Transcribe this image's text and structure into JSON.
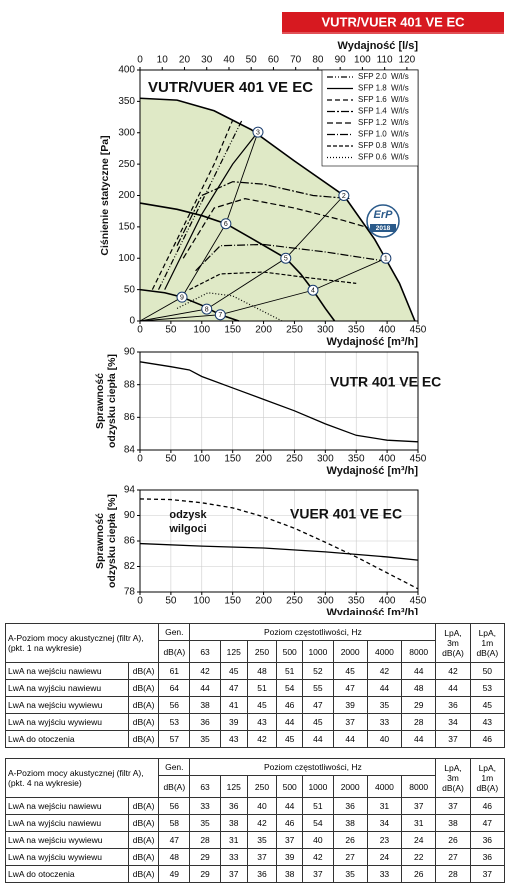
{
  "header": {
    "title": "VUTR/VUER 401 VE EC"
  },
  "chart_data": [
    {
      "type": "line",
      "title": "VUTR/VUER 401 VE EC",
      "xlabel": "Wydajność [m³/h]",
      "x2label": "Wydajność [l/s]",
      "ylabel": "Ciśnienie statyczne [Pa]",
      "xlim": [
        0,
        450
      ],
      "xticks": [
        0,
        50,
        100,
        150,
        200,
        250,
        300,
        350,
        400,
        450
      ],
      "x2lim": [
        0,
        125
      ],
      "x2ticks": [
        0,
        10,
        20,
        30,
        40,
        50,
        60,
        70,
        80,
        90,
        100,
        110,
        120
      ],
      "ylim": [
        0,
        400
      ],
      "yticks": [
        0,
        50,
        100,
        150,
        200,
        250,
        300,
        350,
        400
      ],
      "grid": false,
      "legend_unit": "W/l/s",
      "series": [
        {
          "name": "SFP 2.0",
          "color": "#000000",
          "dash": "6 2 1 2 1 2",
          "width": 1.2,
          "x": [
            30,
            80,
            130,
            165
          ],
          "values": [
            50,
            150,
            250,
            320
          ]
        },
        {
          "name": "SFP 1.8",
          "color": "#000000",
          "dash": "",
          "width": 1.2,
          "x": [
            40,
            100,
            150,
            190
          ],
          "values": [
            50,
            170,
            250,
            300
          ]
        },
        {
          "name": "SFP 1.6",
          "color": "#000000",
          "dash": "5 3",
          "width": 1.2,
          "x": [
            20,
            70,
            120,
            150
          ],
          "values": [
            50,
            150,
            250,
            320
          ]
        },
        {
          "name": "SFP 1.4",
          "color": "#000000",
          "dash": "8 2 2 2",
          "width": 1.2,
          "x": [
            60,
            100,
            150,
            200,
            280,
            340
          ],
          "values": [
            120,
            200,
            222,
            218,
            200,
            195
          ]
        },
        {
          "name": "SFP 1.2",
          "color": "#000000",
          "dash": "6 3",
          "width": 1.2,
          "x": [
            70,
            120,
            170,
            250,
            330,
            400
          ],
          "values": [
            100,
            180,
            195,
            180,
            160,
            140
          ]
        },
        {
          "name": "SFP 1.0",
          "color": "#000000",
          "dash": "8 2 1 2",
          "width": 1.2,
          "x": [
            90,
            130,
            200,
            300,
            400
          ],
          "values": [
            80,
            120,
            122,
            110,
            95
          ]
        },
        {
          "name": "SFP 0.8",
          "color": "#000000",
          "dash": "4 2",
          "width": 1.2,
          "x": [
            80,
            130,
            200,
            280,
            350
          ],
          "values": [
            50,
            75,
            78,
            68,
            60
          ]
        },
        {
          "name": "SFP 0.6",
          "color": "#000000",
          "dash": "1 2",
          "width": 1.2,
          "x": [
            60,
            110,
            150,
            210,
            230
          ],
          "values": [
            20,
            45,
            40,
            10,
            0
          ]
        },
        {
          "color": "#000000",
          "dash": "",
          "width": 1.6,
          "fill": "#dfe9c6",
          "x": [
            0,
            60,
            120,
            180,
            250,
            330,
            380,
            420,
            445
          ],
          "values": [
            355,
            352,
            335,
            305,
            255,
            200,
            130,
            60,
            0
          ]
        },
        {
          "color": "#000000",
          "dash": "",
          "width": 1.6,
          "x": [
            0,
            60,
            100,
            139,
            180,
            236,
            260,
            280,
            300,
            315
          ],
          "values": [
            188,
            178,
            168,
            155,
            132,
            100,
            75,
            49,
            20,
            0
          ]
        },
        {
          "color": "#000000",
          "dash": "",
          "width": 1.6,
          "x": [
            0,
            40,
            68,
            100,
            130,
            160
          ],
          "values": [
            50,
            45,
            38,
            25,
            10,
            0
          ]
        },
        {
          "color": "#000000",
          "dash": "",
          "width": 0.9,
          "x": [
            0,
            68,
            139,
            191
          ],
          "values": [
            0,
            38,
            155,
            301
          ]
        },
        {
          "color": "#000000",
          "dash": "",
          "width": 0.9,
          "x": [
            0,
            108,
            236,
            330
          ],
          "values": [
            0,
            19,
            100,
            200
          ]
        },
        {
          "color": "#000000",
          "dash": "",
          "width": 0.9,
          "x": [
            0,
            130,
            280,
            398
          ],
          "values": [
            0,
            10,
            49,
            100
          ]
        }
      ],
      "points": [
        {
          "label": "1",
          "x": 398,
          "y": 100
        },
        {
          "label": "2",
          "x": 330,
          "y": 200
        },
        {
          "label": "3",
          "x": 191,
          "y": 301
        },
        {
          "label": "4",
          "x": 280,
          "y": 49
        },
        {
          "label": "5",
          "x": 236,
          "y": 100
        },
        {
          "label": "6",
          "x": 139,
          "y": 155
        },
        {
          "label": "7",
          "x": 130,
          "y": 10
        },
        {
          "label": "8",
          "x": 108,
          "y": 19
        },
        {
          "label": "9",
          "x": 68,
          "y": 38
        }
      ],
      "badge": {
        "label": "ErP",
        "year": "2018"
      }
    },
    {
      "type": "line",
      "title": "VUTR 401 VE EC",
      "xlabel": "Wydajność [m³/h]",
      "ylabel": [
        "Sprawność",
        "odzysku ciepła [%]"
      ],
      "xlim": [
        0,
        450
      ],
      "xticks": [
        0,
        50,
        100,
        150,
        200,
        250,
        300,
        350,
        400,
        450
      ],
      "ylim": [
        84,
        90
      ],
      "yticks": [
        84,
        86,
        88,
        90
      ],
      "grid": true,
      "series": [
        {
          "color": "#000000",
          "dash": "",
          "width": 1.3,
          "x": [
            0,
            50,
            80,
            100,
            150,
            200,
            250,
            300,
            350,
            400,
            450
          ],
          "values": [
            89.4,
            89.1,
            88.9,
            88.5,
            87.8,
            87.1,
            86.4,
            85.6,
            84.9,
            84.6,
            84.5
          ]
        }
      ]
    },
    {
      "type": "line",
      "title": "VUER 401 VE EC",
      "xlabel": "Wydajność [m³/h]",
      "ylabel": [
        "Sprawność",
        "odzysku ciepła [%]"
      ],
      "annotation": [
        "odzysk",
        "wilgoci"
      ],
      "xlim": [
        0,
        450
      ],
      "xticks": [
        0,
        50,
        100,
        150,
        200,
        250,
        300,
        350,
        400,
        450
      ],
      "ylim": [
        78,
        94
      ],
      "yticks": [
        78,
        82,
        86,
        90,
        94
      ],
      "grid": true,
      "series": [
        {
          "color": "#000000",
          "dash": "",
          "width": 1.3,
          "x": [
            0,
            100,
            200,
            300,
            400,
            450
          ],
          "values": [
            85.6,
            85.2,
            84.9,
            84.3,
            83.5,
            83
          ]
        },
        {
          "color": "#000000",
          "dash": "4 3",
          "width": 1.3,
          "x": [
            0,
            50,
            100,
            150,
            200,
            250,
            300,
            350,
            400,
            450
          ],
          "values": [
            92.6,
            92.5,
            92,
            91.2,
            89.8,
            88,
            85.8,
            83.5,
            81,
            78.5
          ]
        }
      ]
    }
  ],
  "tables": [
    {
      "title": "A-Poziom mocy akustycznej (filtr A), (pkt. 1 na wykresie)",
      "gen": "Gen.",
      "gen_unit": "dB(A)",
      "freq_title": "Poziom częstotliwości, Hz",
      "freqs": [
        63,
        125,
        250,
        500,
        1000,
        2000,
        4000,
        8000
      ],
      "lpa3": "LpA, 3m dB(A)",
      "lpa1": "LpA, 1m dB(A)",
      "rows": [
        {
          "label": "LwA na wejściu nawiewu",
          "unit": "dB(A)",
          "values": [
            61,
            42,
            45,
            48,
            51,
            52,
            45,
            42,
            44,
            42,
            50
          ]
        },
        {
          "label": "LwA na wyjściu nawiewu",
          "unit": "dB(A)",
          "values": [
            64,
            44,
            47,
            51,
            54,
            55,
            47,
            44,
            48,
            44,
            53
          ]
        },
        {
          "label": "LwA na wejściu wywiewu",
          "unit": "dB(A)",
          "values": [
            56,
            38,
            41,
            45,
            46,
            47,
            39,
            35,
            29,
            36,
            45
          ]
        },
        {
          "label": "LwA na wyjściu wywiewu",
          "unit": "dB(A)",
          "values": [
            53,
            36,
            39,
            43,
            44,
            45,
            37,
            33,
            28,
            34,
            43
          ]
        },
        {
          "label": "LwA do otoczenia",
          "unit": "dB(A)",
          "values": [
            57,
            35,
            43,
            42,
            45,
            44,
            44,
            40,
            44,
            37,
            46
          ]
        }
      ]
    },
    {
      "title": "A-Poziom mocy akustycznej (filtr A), (pkt. 4 na wykresie)",
      "gen": "Gen.",
      "gen_unit": "dB(A)",
      "freq_title": "Poziom częstotliwości, Hz",
      "freqs": [
        63,
        125,
        250,
        500,
        1000,
        2000,
        4000,
        8000
      ],
      "lpa3": "LpA, 3m dB(A)",
      "lpa1": "LpA, 1m dB(A)",
      "rows": [
        {
          "label": "LwA na wejściu nawiewu",
          "unit": "dB(A)",
          "values": [
            56,
            33,
            36,
            40,
            44,
            51,
            36,
            31,
            37,
            37,
            46
          ]
        },
        {
          "label": "LwA na wyjściu nawiewu",
          "unit": "dB(A)",
          "values": [
            58,
            35,
            38,
            42,
            46,
            54,
            38,
            34,
            31,
            38,
            47
          ]
        },
        {
          "label": "LwA na wejściu wywiewu",
          "unit": "dB(A)",
          "values": [
            47,
            28,
            31,
            35,
            37,
            40,
            26,
            23,
            24,
            26,
            36
          ]
        },
        {
          "label": "LwA na wyjściu wywiewu",
          "unit": "dB(A)",
          "values": [
            48,
            29,
            33,
            37,
            39,
            42,
            27,
            24,
            22,
            27,
            36
          ]
        },
        {
          "label": "LwA do otoczenia",
          "unit": "dB(A)",
          "values": [
            49,
            29,
            37,
            36,
            38,
            37,
            35,
            33,
            26,
            28,
            37
          ]
        }
      ]
    }
  ]
}
